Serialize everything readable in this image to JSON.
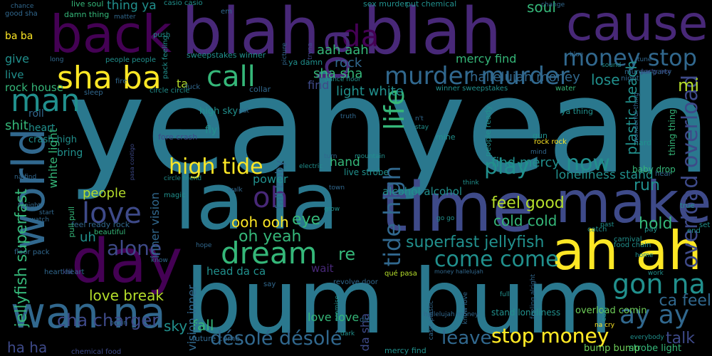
{
  "palette": {
    "teal": "#2a788e",
    "purple": "#440154",
    "indigo": "#482878",
    "blue": "#3e4a89",
    "slate": "#31688e",
    "cyan": "#21908d",
    "green": "#35b779",
    "lime": "#6ece58",
    "yellow": "#fde725",
    "olive": "#b5de2b",
    "dark": "#414487"
  },
  "words": [
    {
      "text": "yeah",
      "color": "#2a788e"
    },
    {
      "text": "yeah",
      "color": "#2a788e"
    },
    {
      "text": "la la",
      "color": "#2a788e"
    },
    {
      "text": "bum bum",
      "color": "#2a788e"
    },
    {
      "text": "back",
      "color": "#440154"
    },
    {
      "text": "blah",
      "color": "#482878"
    },
    {
      "text": "blah",
      "color": "#482878"
    },
    {
      "text": "cause",
      "color": "#482878"
    },
    {
      "text": "da",
      "color": "#440154"
    },
    {
      "text": "ba",
      "color": "#482878"
    },
    {
      "text": "time",
      "color": "#3e4a89"
    },
    {
      "text": "make",
      "color": "#3e4a89"
    },
    {
      "text": "ah ah",
      "color": "#fde725"
    },
    {
      "text": "day",
      "color": "#440154"
    },
    {
      "text": "world",
      "color": "#31688e"
    },
    {
      "text": "wan na",
      "color": "#31688e"
    },
    {
      "text": "sha ba",
      "color": "#fde725"
    },
    {
      "text": "murder murder",
      "color": "#31688e"
    },
    {
      "text": "money stop",
      "color": "#31688e"
    },
    {
      "text": "call",
      "color": "#35b779"
    },
    {
      "text": "man",
      "color": "#21908d"
    },
    {
      "text": "love",
      "color": "#3e4a89"
    },
    {
      "text": "oh",
      "color": "#482878"
    },
    {
      "text": "dream",
      "color": "#35b779"
    },
    {
      "text": "life",
      "color": "#35b779"
    },
    {
      "text": "high tide",
      "color": "#fde725"
    },
    {
      "text": "tide high",
      "color": "#31688e"
    },
    {
      "text": "gon na",
      "color": "#21908d"
    },
    {
      "text": "ay ay",
      "color": "#31688e"
    },
    {
      "text": "overload overload",
      "color": "#3e4a89"
    },
    {
      "text": "come come",
      "color": "#21908d"
    },
    {
      "text": "play",
      "color": "#21908d"
    },
    {
      "text": "now",
      "color": "#21908d"
    },
    {
      "text": "stop money",
      "color": "#fde725"
    },
    {
      "text": "désolé désolé",
      "color": "#31688e"
    },
    {
      "text": "cha charger",
      "color": "#3e4a89"
    },
    {
      "text": "alone",
      "color": "#3e4a89"
    },
    {
      "text": "leave",
      "color": "#31688e"
    },
    {
      "text": "superfast jellyfish",
      "color": "#21908d"
    },
    {
      "text": "jellyfish superfast",
      "color": "#35b779"
    },
    {
      "text": "love break",
      "color": "#b5de2b"
    },
    {
      "text": "feel good",
      "color": "#b5de2b"
    },
    {
      "text": "cold cold",
      "color": "#35b779"
    },
    {
      "text": "find mercy",
      "color": "#21908d"
    },
    {
      "text": "hallelujah money",
      "color": "#31688e"
    },
    {
      "text": "loneliness stand",
      "color": "#21908d"
    },
    {
      "text": "plastic beach",
      "color": "#21908d"
    },
    {
      "text": "run",
      "color": "#21908d"
    },
    {
      "text": "mi",
      "color": "#b5de2b"
    },
    {
      "text": "lose",
      "color": "#21908d"
    },
    {
      "text": "hold",
      "color": "#35b779"
    },
    {
      "text": "talk",
      "color": "#3e4a89"
    },
    {
      "text": "ca feel",
      "color": "#31688e"
    },
    {
      "text": "oh yeah",
      "color": "#35b779"
    },
    {
      "text": "ooh ooh",
      "color": "#fde725"
    },
    {
      "text": "re",
      "color": "#35b779"
    },
    {
      "text": "eye",
      "color": "#35b779"
    },
    {
      "text": "people",
      "color": "#b5de2b"
    },
    {
      "text": "sky",
      "color": "#21908d"
    },
    {
      "text": "fall",
      "color": "#35b779"
    },
    {
      "text": "ha ha",
      "color": "#3e4a89"
    },
    {
      "text": "white light",
      "color": "#35b779"
    },
    {
      "text": "rock house",
      "color": "#35b779"
    },
    {
      "text": "sha sha",
      "color": "#35b779"
    },
    {
      "text": "light white",
      "color": "#21908d"
    },
    {
      "text": "fall baby",
      "color": "#31688e"
    },
    {
      "text": "hand",
      "color": "#35b779"
    },
    {
      "text": "alcohol alcohol",
      "color": "#21908d"
    },
    {
      "text": "love love",
      "color": "#35b779"
    },
    {
      "text": "da sha",
      "color": "#3e4a89"
    },
    {
      "text": "soul",
      "color": "#35b779"
    },
    {
      "text": "mercy find",
      "color": "#35b779"
    },
    {
      "text": "aah aah",
      "color": "#35b779"
    },
    {
      "text": "thing ya",
      "color": "#21908d"
    },
    {
      "text": "rock",
      "color": "#31688e"
    },
    {
      "text": "find",
      "color": "#3e4a89"
    },
    {
      "text": "head da ca",
      "color": "#21908d"
    },
    {
      "text": "wait",
      "color": "#482878"
    },
    {
      "text": "vision inner",
      "color": "#31688e"
    },
    {
      "text": "inner vision",
      "color": "#31688e"
    },
    {
      "text": "power",
      "color": "#21908d"
    },
    {
      "text": "uh",
      "color": "#21908d"
    },
    {
      "text": "ta",
      "color": "#b5de2b"
    },
    {
      "text": "shit",
      "color": "#35b779"
    },
    {
      "text": "give",
      "color": "#21908d"
    },
    {
      "text": "live",
      "color": "#21908d"
    },
    {
      "text": "roll",
      "color": "#31688e"
    },
    {
      "text": "heart",
      "color": "#21908d"
    },
    {
      "text": "crash high",
      "color": "#21908d"
    },
    {
      "text": "bring",
      "color": "#21908d"
    },
    {
      "text": "ba ba",
      "color": "#fde725"
    },
    {
      "text": "high sky",
      "color": "#21908d"
    },
    {
      "text": "fly",
      "color": "#21908d"
    },
    {
      "text": "stop money",
      "color": "#fde725"
    },
    {
      "text": "bump bump",
      "color": "#6ece58"
    },
    {
      "text": "strobe light",
      "color": "#35b779"
    },
    {
      "text": "overload comin",
      "color": "#6ece58"
    },
    {
      "text": "stand loneliness",
      "color": "#21908d"
    },
    {
      "text": "live strobe",
      "color": "#21908d"
    },
    {
      "text": "people ready",
      "color": "#21908d"
    },
    {
      "text": "mercy find",
      "color": "#21908d"
    },
    {
      "text": "baby drop",
      "color": "#35b779"
    },
    {
      "text": "thing thing",
      "color": "#35b779"
    },
    {
      "text": "ya thing",
      "color": "#21908d"
    },
    {
      "text": "sweepstakes winner",
      "color": "#21908d"
    },
    {
      "text": "ya damn",
      "color": "#21908d"
    },
    {
      "text": "murder party",
      "color": "#31688e"
    },
    {
      "text": "chemical food",
      "color": "#3e4a89"
    },
    {
      "text": "future come",
      "color": "#31688e"
    },
    {
      "text": "hallelujah money",
      "color": "#31688e"
    },
    {
      "text": "feel ready rock",
      "color": "#31688e"
    },
    {
      "text": "pull pull",
      "color": "#35b779"
    },
    {
      "text": "fore crash",
      "color": "#3e4a89"
    },
    {
      "text": "circle circle",
      "color": "#21908d"
    },
    {
      "text": "heart heart",
      "color": "#31688e"
    },
    {
      "text": "floor pack",
      "color": "#31688e"
    },
    {
      "text": "kill",
      "color": "#3e4a89"
    },
    {
      "text": "revolve door",
      "color": "#31688e"
    },
    {
      "text": "casio plastic",
      "color": "#31688e"
    },
    {
      "text": "carnival",
      "color": "#21908d"
    },
    {
      "text": "food chain",
      "color": "#21908d"
    },
    {
      "text": "sex murder",
      "color": "#21908d"
    },
    {
      "text": "put chemical",
      "color": "#21908d"
    },
    {
      "text": "live soul",
      "color": "#35b779"
    },
    {
      "text": "damn thing",
      "color": "#35b779"
    },
    {
      "text": "good sha",
      "color": "#31688e"
    },
    {
      "text": "casio casio",
      "color": "#21908d"
    },
    {
      "text": "push",
      "color": "#21908d"
    },
    {
      "text": "pack feeling",
      "color": "#21908d"
    },
    {
      "text": "people people",
      "color": "#21908d"
    },
    {
      "text": "winner sweepstakes",
      "color": "#21908d"
    },
    {
      "text": "dance floor",
      "color": "#21908d"
    },
    {
      "text": "tryna",
      "color": "#3e4a89"
    },
    {
      "text": "picture",
      "color": "#31688e"
    },
    {
      "text": "blue",
      "color": "#31688e"
    },
    {
      "text": "sound",
      "color": "#21908d"
    },
    {
      "text": "tune",
      "color": "#31688e"
    },
    {
      "text": "night",
      "color": "#31688e"
    },
    {
      "text": "party sex",
      "color": "#3e4a89"
    },
    {
      "text": "collar",
      "color": "#31688e"
    },
    {
      "text": "water",
      "color": "#35b779"
    },
    {
      "text": "mind",
      "color": "#31688e"
    },
    {
      "text": "rock rock",
      "color": "#fde725"
    },
    {
      "text": "gun",
      "color": "#21908d"
    },
    {
      "text": "hard",
      "color": "#21908d"
    },
    {
      "text": "hear",
      "color": "#31688e"
    },
    {
      "text": "true",
      "color": "#21908d"
    },
    {
      "text": "set",
      "color": "#21908d"
    },
    {
      "text": "catch",
      "color": "#21908d"
    },
    {
      "text": "past",
      "color": "#21908d"
    },
    {
      "text": "pay",
      "color": "#21908d"
    },
    {
      "text": "end",
      "color": "#21908d"
    },
    {
      "text": "home",
      "color": "#21908d"
    },
    {
      "text": "work",
      "color": "#21908d"
    },
    {
      "text": "everybody",
      "color": "#21908d"
    },
    {
      "text": "na cry",
      "color": "#fde725"
    },
    {
      "text": "easy",
      "color": "#21908d"
    },
    {
      "text": "full",
      "color": "#21908d"
    },
    {
      "text": "feeling alright",
      "color": "#31688e"
    },
    {
      "text": "know love",
      "color": "#31688e"
    },
    {
      "text": "money hallelujah",
      "color": "#31688e"
    },
    {
      "text": "qué pasa",
      "color": "#b5de2b"
    },
    {
      "text": "promise",
      "color": "#21908d"
    },
    {
      "text": "dark",
      "color": "#21908d"
    },
    {
      "text": "die",
      "color": "#31688e"
    },
    {
      "text": "say",
      "color": "#31688e"
    },
    {
      "text": "know",
      "color": "#31688e"
    },
    {
      "text": "beautiful",
      "color": "#35b779"
    },
    {
      "text": "hope",
      "color": "#31688e"
    },
    {
      "text": "begin",
      "color": "#31688e"
    },
    {
      "text": "magic",
      "color": "#21908d"
    },
    {
      "text": "walk",
      "color": "#31688e"
    },
    {
      "text": "circle friend",
      "color": "#21908d"
    },
    {
      "text": "electric",
      "color": "#21908d"
    },
    {
      "text": "town",
      "color": "#31688e"
    },
    {
      "text": "grow",
      "color": "#21908d"
    },
    {
      "text": "think",
      "color": "#21908d"
    },
    {
      "text": "go go",
      "color": "#21908d"
    },
    {
      "text": "mountain",
      "color": "#21908d"
    },
    {
      "text": "mine",
      "color": "#21908d"
    },
    {
      "text": "stay",
      "color": "#21908d"
    },
    {
      "text": "n't",
      "color": "#31688e"
    },
    {
      "text": "truth",
      "color": "#31688e"
    },
    {
      "text": "put",
      "color": "#31688e"
    },
    {
      "text": "sleep",
      "color": "#31688e"
    },
    {
      "text": "fire",
      "color": "#31688e"
    },
    {
      "text": "fuck",
      "color": "#31688e"
    },
    {
      "text": "matter",
      "color": "#31688e"
    },
    {
      "text": "chance",
      "color": "#31688e"
    },
    {
      "text": "change",
      "color": "#31688e"
    },
    {
      "text": "em",
      "color": "#31688e"
    },
    {
      "text": "long",
      "color": "#31688e"
    },
    {
      "text": "wonderful thing",
      "color": "#31688e"
    },
    {
      "text": "pasa contigo",
      "color": "#3e4a89"
    },
    {
      "text": "tonight",
      "color": "#31688e"
    },
    {
      "text": "start",
      "color": "#31688e"
    },
    {
      "text": "watch",
      "color": "#31688e"
    },
    {
      "text": "na find",
      "color": "#31688e"
    },
    {
      "text": "turn",
      "color": "#31688e"
    }
  ]
}
